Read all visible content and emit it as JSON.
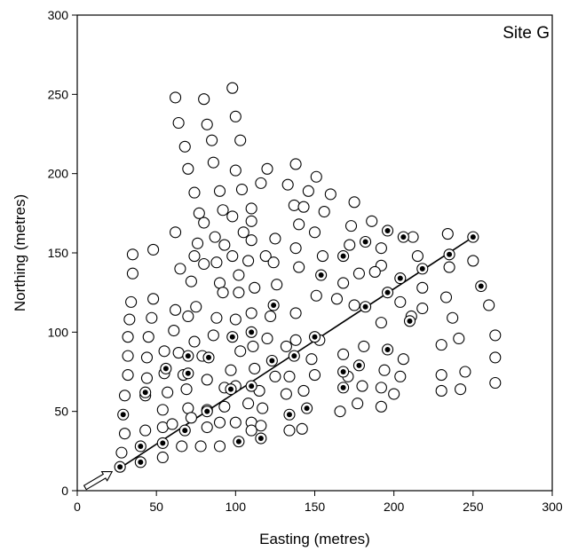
{
  "chart_data": {
    "type": "scatter",
    "title": "",
    "annotation": "Site G",
    "xlabel": "Easting (metres)",
    "ylabel": "Northing (metres)",
    "xlim": [
      0,
      300
    ],
    "ylim": [
      0,
      300
    ],
    "xticks": [
      0,
      50,
      100,
      150,
      200,
      250,
      300
    ],
    "yticks": [
      0,
      50,
      100,
      150,
      200,
      250,
      300
    ],
    "grid": false,
    "legend": "none",
    "marker_colors": {
      "open": "#000000",
      "filled_center": "#000000",
      "fill": "#ffffff"
    },
    "series": [
      {
        "marker": "open-circle",
        "points": [
          [
            62,
            248
          ],
          [
            80,
            247
          ],
          [
            98,
            254
          ],
          [
            64,
            232
          ],
          [
            82,
            231
          ],
          [
            100,
            236
          ],
          [
            68,
            217
          ],
          [
            85,
            221
          ],
          [
            103,
            221
          ],
          [
            70,
            203
          ],
          [
            86,
            207
          ],
          [
            100,
            202
          ],
          [
            120,
            203
          ],
          [
            74,
            188
          ],
          [
            90,
            189
          ],
          [
            104,
            190
          ],
          [
            116,
            194
          ],
          [
            77,
            175
          ],
          [
            92,
            177
          ],
          [
            110,
            178
          ],
          [
            138,
            206
          ],
          [
            133,
            193
          ],
          [
            151,
            198
          ],
          [
            146,
            189
          ],
          [
            160,
            187
          ],
          [
            62,
            163
          ],
          [
            80,
            169
          ],
          [
            98,
            173
          ],
          [
            110,
            170
          ],
          [
            137,
            180
          ],
          [
            143,
            179
          ],
          [
            156,
            176
          ],
          [
            175,
            182
          ],
          [
            65,
            140
          ],
          [
            74,
            148
          ],
          [
            76,
            156
          ],
          [
            87,
            160
          ],
          [
            105,
            163
          ],
          [
            125,
            159
          ],
          [
            140,
            168
          ],
          [
            173,
            167
          ],
          [
            186,
            170
          ],
          [
            35,
            149
          ],
          [
            48,
            152
          ],
          [
            35,
            137
          ],
          [
            72,
            132
          ],
          [
            80,
            143
          ],
          [
            88,
            144
          ],
          [
            93,
            155
          ],
          [
            98,
            148
          ],
          [
            110,
            158
          ],
          [
            119,
            148
          ],
          [
            138,
            153
          ],
          [
            150,
            163
          ],
          [
            172,
            155
          ],
          [
            192,
            153
          ],
          [
            212,
            160
          ],
          [
            234,
            162
          ],
          [
            90,
            131
          ],
          [
            102,
            136
          ],
          [
            108,
            145
          ],
          [
            124,
            144
          ],
          [
            140,
            141
          ],
          [
            155,
            148
          ],
          [
            192,
            142
          ],
          [
            34,
            119
          ],
          [
            48,
            121
          ],
          [
            62,
            114
          ],
          [
            75,
            116
          ],
          [
            92,
            125
          ],
          [
            102,
            125
          ],
          [
            112,
            128
          ],
          [
            126,
            130
          ],
          [
            151,
            123
          ],
          [
            168,
            131
          ],
          [
            178,
            137
          ],
          [
            188,
            138
          ],
          [
            215,
            148
          ],
          [
            235,
            141
          ],
          [
            260,
            117
          ],
          [
            264,
            98
          ],
          [
            250,
            145
          ],
          [
            218,
            128
          ],
          [
            33,
            108
          ],
          [
            47,
            109
          ],
          [
            61,
            101
          ],
          [
            70,
            110
          ],
          [
            88,
            109
          ],
          [
            100,
            108
          ],
          [
            110,
            112
          ],
          [
            122,
            110
          ],
          [
            138,
            112
          ],
          [
            164,
            121
          ],
          [
            175,
            117
          ],
          [
            192,
            106
          ],
          [
            204,
            119
          ],
          [
            211,
            110
          ],
          [
            218,
            115
          ],
          [
            233,
            122
          ],
          [
            237,
            109
          ],
          [
            241,
            96
          ],
          [
            230,
            92
          ],
          [
            32,
            97
          ],
          [
            45,
            97
          ],
          [
            55,
            88
          ],
          [
            64,
            87
          ],
          [
            74,
            94
          ],
          [
            86,
            98
          ],
          [
            103,
            88
          ],
          [
            111,
            91
          ],
          [
            120,
            96
          ],
          [
            132,
            91
          ],
          [
            138,
            95
          ],
          [
            153,
            95
          ],
          [
            168,
            86
          ],
          [
            181,
            91
          ],
          [
            194,
            76
          ],
          [
            204,
            72
          ],
          [
            206,
            83
          ],
          [
            230,
            73
          ],
          [
            245,
            75
          ],
          [
            264,
            84
          ],
          [
            32,
            85
          ],
          [
            44,
            84
          ],
          [
            55,
            74
          ],
          [
            67,
            73
          ],
          [
            79,
            85
          ],
          [
            97,
            76
          ],
          [
            112,
            77
          ],
          [
            125,
            72
          ],
          [
            134,
            72
          ],
          [
            148,
            83
          ],
          [
            150,
            73
          ],
          [
            171,
            72
          ],
          [
            180,
            66
          ],
          [
            192,
            65
          ],
          [
            200,
            61
          ],
          [
            230,
            63
          ],
          [
            242,
            64
          ],
          [
            264,
            68
          ],
          [
            32,
            73
          ],
          [
            44,
            71
          ],
          [
            57,
            62
          ],
          [
            69,
            64
          ],
          [
            82,
            70
          ],
          [
            93,
            65
          ],
          [
            100,
            66
          ],
          [
            115,
            63
          ],
          [
            132,
            61
          ],
          [
            143,
            63
          ],
          [
            166,
            50
          ],
          [
            177,
            55
          ],
          [
            192,
            53
          ],
          [
            30,
            60
          ],
          [
            43,
            60
          ],
          [
            54,
            51
          ],
          [
            70,
            52
          ],
          [
            82,
            51
          ],
          [
            93,
            53
          ],
          [
            108,
            55
          ],
          [
            117,
            52
          ],
          [
            134,
            38
          ],
          [
            142,
            39
          ],
          [
            54,
            40
          ],
          [
            60,
            42
          ],
          [
            72,
            46
          ],
          [
            90,
            43
          ],
          [
            100,
            43
          ],
          [
            110,
            43
          ],
          [
            30,
            36
          ],
          [
            43,
            38
          ],
          [
            66,
            28
          ],
          [
            78,
            28
          ],
          [
            82,
            40
          ],
          [
            90,
            28
          ],
          [
            110,
            38
          ],
          [
            116,
            41
          ],
          [
            28,
            24
          ],
          [
            54,
            21
          ]
        ]
      },
      {
        "marker": "dotted-circle",
        "points": [
          [
            27,
            15
          ],
          [
            40,
            18
          ],
          [
            40,
            28
          ],
          [
            54,
            30
          ],
          [
            68,
            38
          ],
          [
            82,
            50
          ],
          [
            97,
            64
          ],
          [
            110,
            66
          ],
          [
            123,
            82
          ],
          [
            137,
            85
          ],
          [
            150,
            97
          ],
          [
            168,
            75
          ],
          [
            178,
            79
          ],
          [
            168,
            65
          ],
          [
            145,
            52
          ],
          [
            134,
            48
          ],
          [
            116,
            33
          ],
          [
            102,
            31
          ],
          [
            83,
            84
          ],
          [
            70,
            85
          ],
          [
            70,
            74
          ],
          [
            56,
            77
          ],
          [
            43,
            62
          ],
          [
            29,
            48
          ],
          [
            98,
            97
          ],
          [
            110,
            100
          ],
          [
            124,
            117
          ],
          [
            154,
            136
          ],
          [
            168,
            148
          ],
          [
            182,
            157
          ],
          [
            196,
            125
          ],
          [
            182,
            116
          ],
          [
            196,
            89
          ],
          [
            204,
            134
          ],
          [
            210,
            107
          ],
          [
            218,
            140
          ],
          [
            235,
            149
          ],
          [
            250,
            160
          ],
          [
            255,
            129
          ],
          [
            196,
            164
          ],
          [
            206,
            160
          ]
        ]
      }
    ],
    "transect_line": {
      "x": [
        25,
        250
      ],
      "y": [
        13,
        160
      ]
    },
    "arrow": {
      "from": [
        5,
        2
      ],
      "to": [
        22,
        12
      ]
    }
  }
}
